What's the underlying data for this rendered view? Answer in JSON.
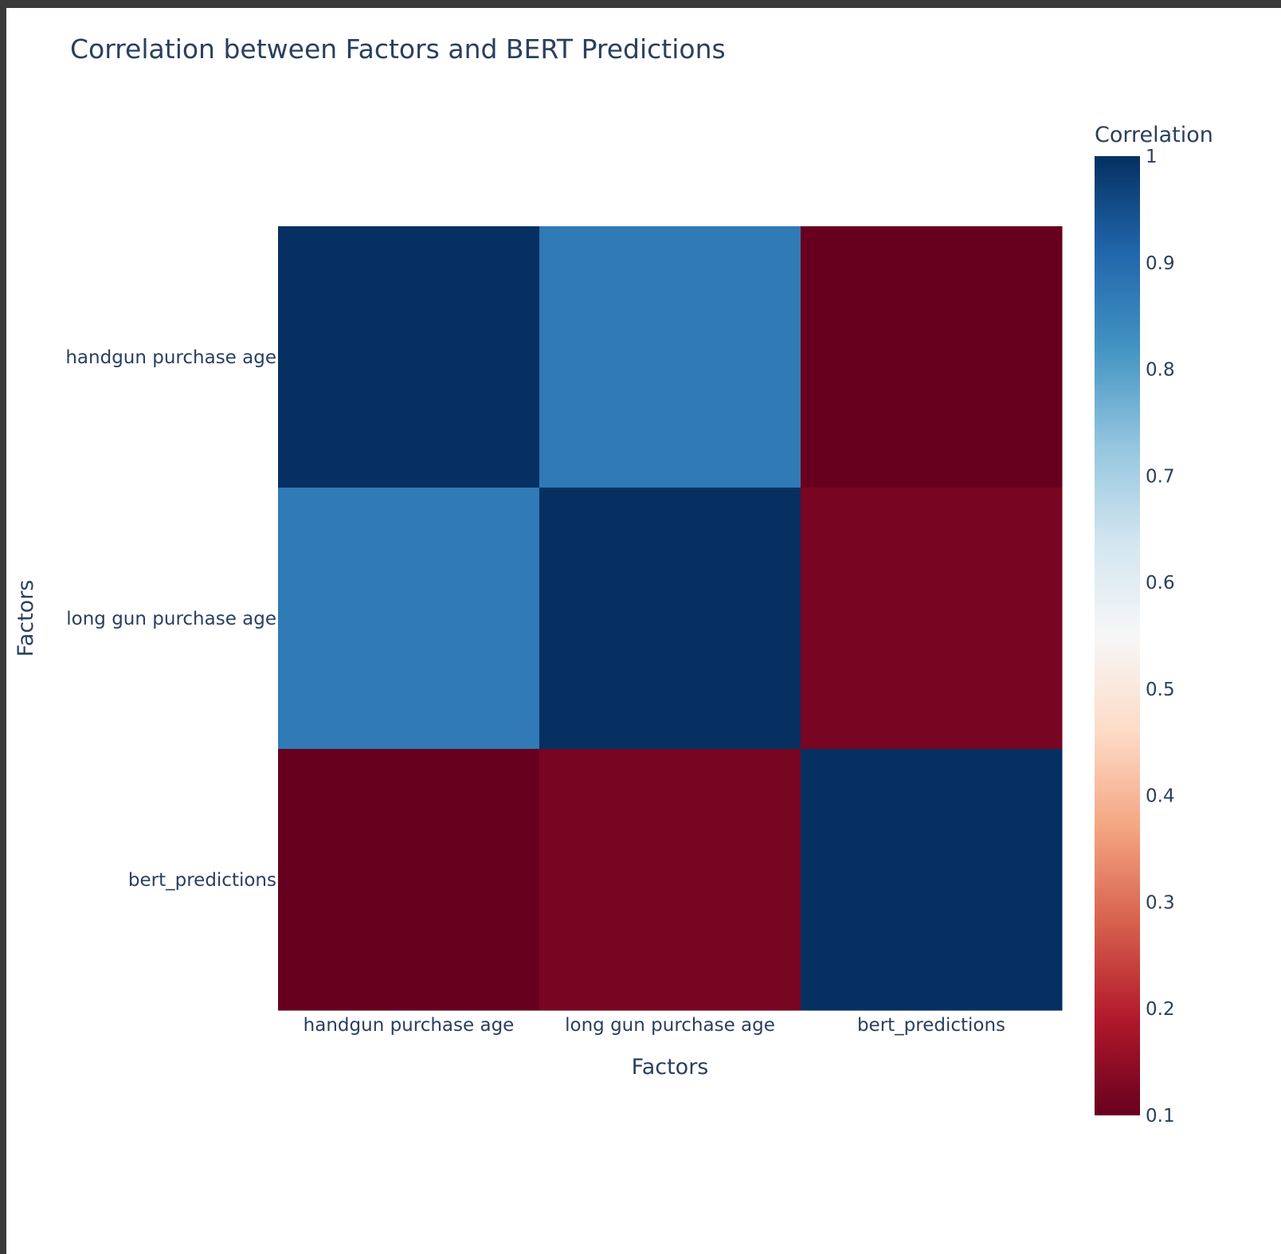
{
  "chart_data": {
    "type": "heatmap",
    "title": "Correlation between Factors and BERT Predictions",
    "xlabel": "Factors",
    "ylabel": "Factors",
    "x": [
      "handgun purchase age",
      "long gun purchase age",
      "bert_predictions"
    ],
    "y": [
      "handgun purchase age",
      "long gun purchase age",
      "bert_predictions"
    ],
    "z": [
      [
        1.0,
        0.87,
        0.1
      ],
      [
        0.87,
        1.0,
        0.12
      ],
      [
        0.1,
        0.12,
        1.0
      ]
    ],
    "colorbar": {
      "title": "Correlation",
      "range": [
        0.1,
        1
      ],
      "ticks": [
        1,
        0.9,
        0.8,
        0.7,
        0.6,
        0.5,
        0.4,
        0.3,
        0.2,
        0.1
      ],
      "tick_labels": [
        "1",
        "0.9",
        "0.8",
        "0.7",
        "0.6",
        "0.5",
        "0.4",
        "0.3",
        "0.2",
        "0.1"
      ]
    },
    "colorscale": [
      "#67001f",
      "#b2182b",
      "#d6604d",
      "#f4a582",
      "#fddbc7",
      "#f7f7f7",
      "#d1e5f0",
      "#92c5de",
      "#4393c3",
      "#2166ac",
      "#053061"
    ]
  }
}
